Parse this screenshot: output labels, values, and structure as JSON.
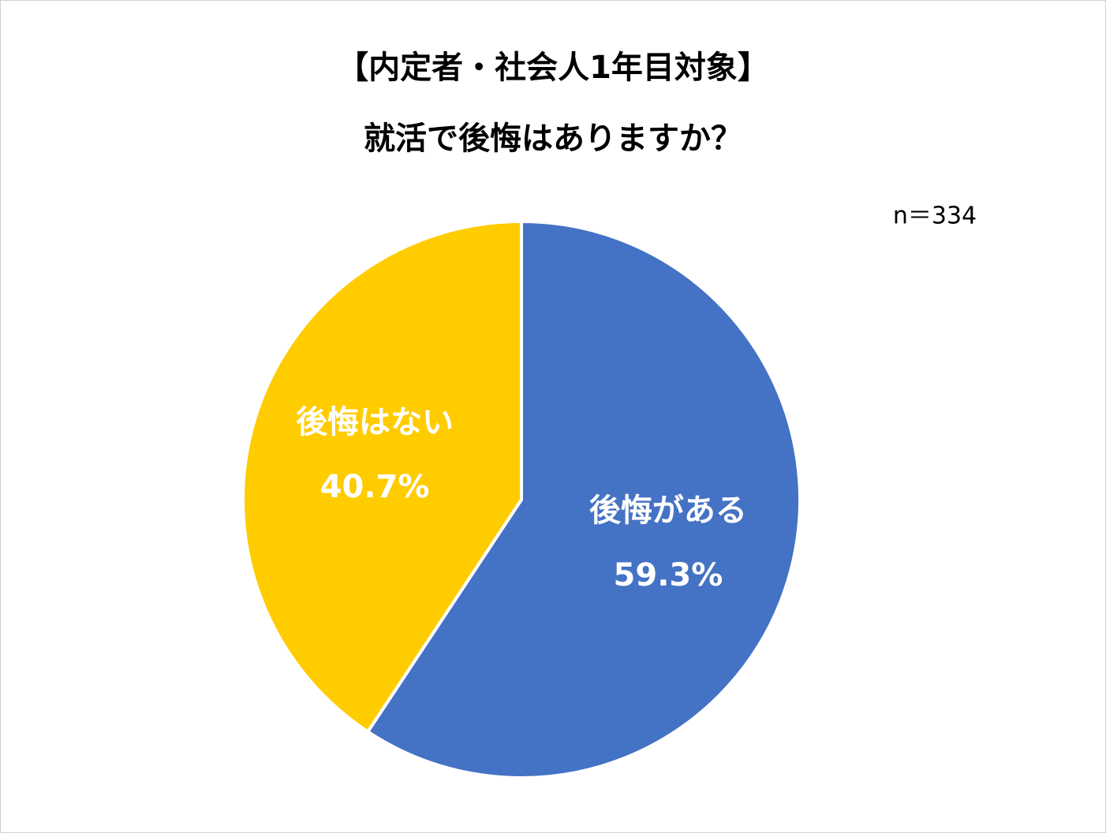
{
  "chart_data": {
    "type": "pie",
    "title": "【内定者・社会人1年目対象】",
    "subtitle": "就活で後悔はありますか？",
    "annotation": "n＝334",
    "categories": [
      "後悔がある",
      "後悔はない"
    ],
    "values": [
      59.3,
      40.7
    ],
    "value_labels": [
      "59.3%",
      "40.7%"
    ],
    "colors": [
      "#4472c4",
      "#ffcc00"
    ]
  }
}
